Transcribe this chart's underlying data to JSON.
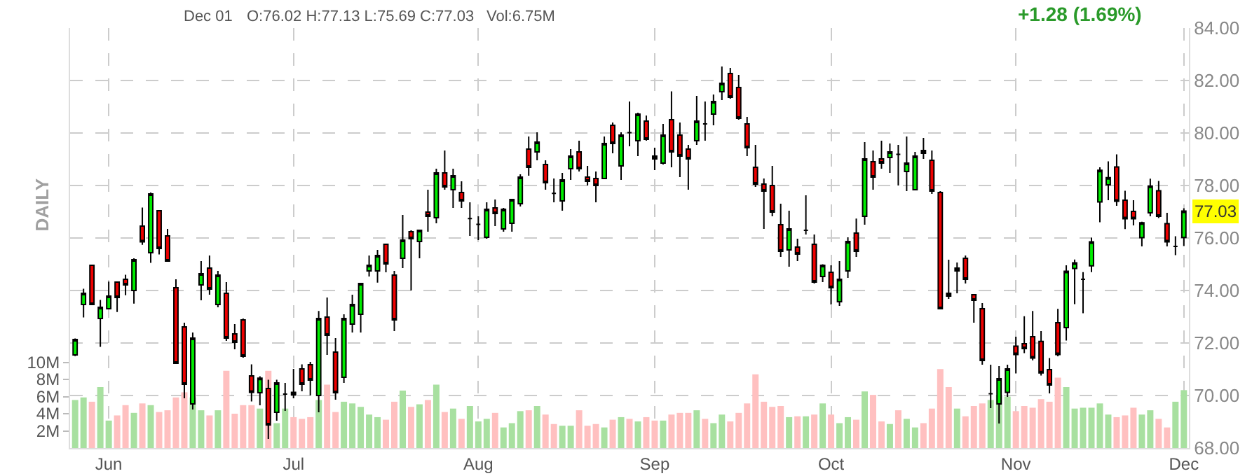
{
  "chart_data": {
    "type": "candlestick",
    "categories": [
      null,
      null,
      null,
      null,
      "Jun",
      null,
      null,
      null,
      null,
      null,
      null,
      null,
      null,
      null,
      null,
      null,
      null,
      null,
      null,
      null,
      null,
      null,
      null,
      null,
      null,
      null,
      "Jul",
      null,
      null,
      null,
      null,
      null,
      null,
      null,
      null,
      null,
      null,
      null,
      null,
      null,
      null,
      null,
      null,
      null,
      null,
      null,
      null,
      null,
      "Aug",
      null,
      null,
      null,
      null,
      null,
      null,
      null,
      null,
      null,
      null,
      null,
      null,
      null,
      null,
      null,
      null,
      null,
      null,
      null,
      null,
      "Sep",
      null,
      null,
      null,
      null,
      null,
      null,
      null,
      null,
      null,
      null,
      null,
      null,
      null,
      null,
      null,
      null,
      null,
      null,
      null,
      null,
      "Oct",
      null,
      null,
      null,
      null,
      null,
      null,
      null,
      null,
      null,
      null,
      null,
      null,
      null,
      null,
      null,
      null,
      null,
      null,
      null,
      null,
      null,
      "Nov",
      null,
      null,
      null,
      null,
      null,
      null,
      null,
      null,
      null,
      null,
      null,
      null,
      null,
      null,
      null,
      null,
      null,
      null,
      null,
      "Dec"
    ],
    "ohlc": [
      [
        71.55,
        72.17,
        71.5,
        72.13
      ],
      [
        73.47,
        74.07,
        72.97,
        73.89
      ],
      [
        74.96,
        74.96,
        73.47,
        73.47
      ],
      [
        72.93,
        73.64,
        71.85,
        73.36
      ],
      [
        73.31,
        74.34,
        73.31,
        73.79
      ],
      [
        74.32,
        74.32,
        73.18,
        73.73
      ],
      [
        74.43,
        74.6,
        73.82,
        74.21
      ],
      [
        74.0,
        75.23,
        73.5,
        75.17
      ],
      [
        76.45,
        77.16,
        75.74,
        75.85
      ],
      [
        75.44,
        77.73,
        75.05,
        77.68
      ],
      [
        77.04,
        77.04,
        75.37,
        75.6
      ],
      [
        76.08,
        76.35,
        75.12,
        75.12
      ],
      [
        74.11,
        74.43,
        71.23,
        71.23
      ],
      [
        72.61,
        72.77,
        69.89,
        70.43
      ],
      [
        69.68,
        72.4,
        69.47,
        72.19
      ],
      [
        74.21,
        75.12,
        73.63,
        74.64
      ],
      [
        74.85,
        75.33,
        73.84,
        74.05
      ],
      [
        73.47,
        74.75,
        73.36,
        74.59
      ],
      [
        73.89,
        74.32,
        72.08,
        72.19
      ],
      [
        72.35,
        72.72,
        71.76,
        72.03
      ],
      [
        72.88,
        72.93,
        71.44,
        71.49
      ],
      [
        70.75,
        71.19,
        69.77,
        70.12
      ],
      [
        70.11,
        70.73,
        69.63,
        70.66
      ],
      [
        70.27,
        70.6,
        68.35,
        68.88
      ],
      [
        69.36,
        70.6,
        69.04,
        70.48
      ],
      [
        70.05,
        70.48,
        69.41,
        70.05
      ],
      [
        70.12,
        71.01,
        69.89,
        70.02
      ],
      [
        71.01,
        71.19,
        70.16,
        70.43
      ],
      [
        71.17,
        71.28,
        70.0,
        70.59
      ],
      [
        70.0,
        73.22,
        69.36,
        72.93
      ],
      [
        72.99,
        73.73,
        71.55,
        72.29
      ],
      [
        71.65,
        72.19,
        69.84,
        70.11
      ],
      [
        70.69,
        73.09,
        70.48,
        72.93
      ],
      [
        72.72,
        73.84,
        72.4,
        73.47
      ],
      [
        73.09,
        74.27,
        72.4,
        74.27
      ],
      [
        74.75,
        75.33,
        74.53,
        74.96
      ],
      [
        74.75,
        75.55,
        74.3,
        75.33
      ],
      [
        75.76,
        75.76,
        74.69,
        75.01
      ],
      [
        74.59,
        74.75,
        72.45,
        72.88
      ],
      [
        75.23,
        76.88,
        74.85,
        75.92
      ],
      [
        76.24,
        76.29,
        74.0,
        75.97
      ],
      [
        75.87,
        76.29,
        75.23,
        76.29
      ],
      [
        76.99,
        77.84,
        76.24,
        76.83
      ],
      [
        76.77,
        78.64,
        76.56,
        78.48
      ],
      [
        78.48,
        79.33,
        77.84,
        77.95
      ],
      [
        77.84,
        78.64,
        77.15,
        78.37
      ],
      [
        77.73,
        78.16,
        77.15,
        77.41
      ],
      [
        76.74,
        77.36,
        76.08,
        76.74
      ],
      [
        76.52,
        76.83,
        75.92,
        76.52
      ],
      [
        76.03,
        77.36,
        75.97,
        77.09
      ],
      [
        77.15,
        77.47,
        76.45,
        76.93
      ],
      [
        76.35,
        77.15,
        76.24,
        77.09
      ],
      [
        76.56,
        77.47,
        76.24,
        77.47
      ],
      [
        77.31,
        78.43,
        77.2,
        78.32
      ],
      [
        79.39,
        79.87,
        78.37,
        78.69
      ],
      [
        79.28,
        80.03,
        78.96,
        79.65
      ],
      [
        78.8,
        78.96,
        77.84,
        78.11
      ],
      [
        77.7,
        78.27,
        77.36,
        77.7
      ],
      [
        77.41,
        78.48,
        77.04,
        78.21
      ],
      [
        78.64,
        79.39,
        78.21,
        79.12
      ],
      [
        79.28,
        79.71,
        78.53,
        78.64
      ],
      [
        78.32,
        78.75,
        78.0,
        78.16
      ],
      [
        78.27,
        78.53,
        77.36,
        78.0
      ],
      [
        78.27,
        79.87,
        78.27,
        79.6
      ],
      [
        80.29,
        80.4,
        79.23,
        79.6
      ],
      [
        78.75,
        80.03,
        78.21,
        79.92
      ],
      [
        80.01,
        81.2,
        79.49,
        80.01
      ],
      [
        79.71,
        80.77,
        79.12,
        80.72
      ],
      [
        80.45,
        80.67,
        79.71,
        79.76
      ],
      [
        79.12,
        79.44,
        78.59,
        79.01
      ],
      [
        78.85,
        80.35,
        78.8,
        79.92
      ],
      [
        80.51,
        81.59,
        78.69,
        79.28
      ],
      [
        79.92,
        80.4,
        78.32,
        79.12
      ],
      [
        79.39,
        79.55,
        77.84,
        79.01
      ],
      [
        79.71,
        81.41,
        79.55,
        80.45
      ],
      [
        80.35,
        81.2,
        79.71,
        80.35
      ],
      [
        80.72,
        81.47,
        80.29,
        81.2
      ],
      [
        81.57,
        82.53,
        81.25,
        81.89
      ],
      [
        82.27,
        82.48,
        81.31,
        81.36
      ],
      [
        81.73,
        82.21,
        80.51,
        80.56
      ],
      [
        80.35,
        80.61,
        79.12,
        79.44
      ],
      [
        78.69,
        79.55,
        77.95,
        78.05
      ],
      [
        78.05,
        78.27,
        76.35,
        77.79
      ],
      [
        78.0,
        78.75,
        76.83,
        76.99
      ],
      [
        76.51,
        77.31,
        75.28,
        75.49
      ],
      [
        75.55,
        77.04,
        74.91,
        76.35
      ],
      [
        75.65,
        75.97,
        75.12,
        75.39
      ],
      [
        76.29,
        77.63,
        76.13,
        76.29
      ],
      [
        75.76,
        76.13,
        74.27,
        74.32
      ],
      [
        74.53,
        75.0,
        74.32,
        74.96
      ],
      [
        74.69,
        74.96,
        73.47,
        74.11
      ],
      [
        73.57,
        75.12,
        73.41,
        74.43
      ],
      [
        74.75,
        76.03,
        74.48,
        75.87
      ],
      [
        76.19,
        76.74,
        75.28,
        75.49
      ],
      [
        76.83,
        79.65,
        76.51,
        79.01
      ],
      [
        78.91,
        79.33,
        77.84,
        78.32
      ],
      [
        79.01,
        79.71,
        78.64,
        78.85
      ],
      [
        79.07,
        79.6,
        78.48,
        79.28
      ],
      [
        79.19,
        79.55,
        78.0,
        79.19
      ],
      [
        78.53,
        79.87,
        77.79,
        78.85
      ],
      [
        77.84,
        79.28,
        77.84,
        79.12
      ],
      [
        79.33,
        79.81,
        79.01,
        79.23
      ],
      [
        78.96,
        79.33,
        77.68,
        77.79
      ],
      [
        77.73,
        77.79,
        73.31,
        73.31
      ],
      [
        73.89,
        75.17,
        73.68,
        73.79
      ],
      [
        74.75,
        75.07,
        73.89,
        74.85
      ],
      [
        75.23,
        75.33,
        74.27,
        74.43
      ],
      [
        73.84,
        73.84,
        72.77,
        73.63
      ],
      [
        73.31,
        73.52,
        71.17,
        71.33
      ],
      [
        70.07,
        71.17,
        69.52,
        70.07
      ],
      [
        69.68,
        71.12,
        68.93,
        70.64
      ],
      [
        70.12,
        71.17,
        69.95,
        71.01
      ],
      [
        71.88,
        72.24,
        70.84,
        71.56
      ],
      [
        71.97,
        73.02,
        71.61,
        71.79
      ],
      [
        72.24,
        73.22,
        71.34,
        71.43
      ],
      [
        72.06,
        72.45,
        70.76,
        70.86
      ],
      [
        70.99,
        71.43,
        70.08,
        70.4
      ],
      [
        72.77,
        73.3,
        71.49,
        71.56
      ],
      [
        72.59,
        74.96,
        72.09,
        74.73
      ],
      [
        74.84,
        75.18,
        73.48,
        75.05
      ],
      [
        74.43,
        74.7,
        73.13,
        74.43
      ],
      [
        74.94,
        76.01,
        74.7,
        75.85
      ],
      [
        77.37,
        78.69,
        76.6,
        78.58
      ],
      [
        78.03,
        78.92,
        77.44,
        78.3
      ],
      [
        78.71,
        79.19,
        77.23,
        77.4
      ],
      [
        77.44,
        77.8,
        76.34,
        76.73
      ],
      [
        77.01,
        77.44,
        76.48,
        76.73
      ],
      [
        76.01,
        76.62,
        75.68,
        76.58
      ],
      [
        76.96,
        78.26,
        76.83,
        77.98
      ],
      [
        77.8,
        78.17,
        76.76,
        76.83
      ],
      [
        76.55,
        76.96,
        75.68,
        75.85
      ],
      [
        75.68,
        76.07,
        75.35,
        75.68
      ],
      [
        76.02,
        77.13,
        75.69,
        77.03
      ]
    ],
    "series": [
      {
        "type": "bar",
        "axis": "y2",
        "values": [
          5.6,
          5.9,
          5.4,
          7.1,
          3.2,
          3.8,
          5.0,
          4.1,
          5.2,
          5.0,
          4.2,
          4.4,
          5.9,
          6.5,
          5.9,
          4.4,
          3.8,
          4.4,
          9.0,
          4.0,
          5.0,
          5.0,
          4.6,
          9.0,
          2.9,
          4.6,
          3.6,
          3.4,
          3.6,
          5.6,
          7.4,
          4.2,
          5.4,
          5.2,
          4.8,
          3.9,
          3.6,
          3.3,
          5.4,
          6.7,
          4.8,
          5.1,
          5.6,
          7.4,
          4.2,
          4.6,
          3.4,
          4.9,
          3.1,
          3.4,
          4.1,
          2.4,
          2.9,
          4.3,
          4.4,
          4.9,
          3.9,
          2.8,
          2.6,
          2.6,
          4.4,
          2.6,
          2.8,
          2.4,
          3.3,
          3.6,
          3.4,
          3.1,
          3.6,
          3.2,
          3.2,
          3.9,
          4.1,
          4.1,
          4.4,
          3.4,
          2.9,
          3.9,
          3.1,
          4.1,
          5.2,
          8.6,
          5.4,
          4.8,
          4.9,
          3.6,
          3.7,
          3.7,
          3.9,
          5.2,
          3.9,
          2.9,
          3.6,
          3.3,
          6.6,
          6.2,
          3.1,
          2.8,
          4.4,
          3.4,
          2.4,
          2.9,
          4.6,
          9.2,
          7.1,
          4.6,
          3.7,
          4.9,
          5.2,
          5.6,
          6.2,
          6.0,
          4.3,
          4.9,
          4.7,
          5.7,
          5.4,
          8.2,
          7.1,
          4.6,
          4.7,
          4.7,
          5.2,
          3.9,
          3.6,
          3.8,
          4.7,
          3.9,
          4.4,
          3.4,
          2.4,
          5.4,
          6.75
        ],
        "colors": [
          "#a8e0a0",
          "#a8e0a0",
          "#ffc0c0",
          "#a8e0a0",
          "#a8e0a0",
          "#ffc0c0",
          "#ffc0c0",
          "#a8e0a0",
          "#ffc0c0",
          "#a8e0a0",
          "#ffc0c0",
          "#ffc0c0",
          "#ffc0c0",
          "#ffc0c0",
          "#a8e0a0",
          "#a8e0a0",
          "#ffc0c0",
          "#a8e0a0",
          "#ffc0c0",
          "#ffc0c0",
          "#ffc0c0",
          "#ffc0c0",
          "#a8e0a0",
          "#ffc0c0",
          "#a8e0a0",
          "#a8e0a0",
          "#ffc0c0",
          "#ffc0c0",
          "#ffc0c0",
          "#a8e0a0",
          "#ffc0c0",
          "#ffc0c0",
          "#a8e0a0",
          "#a8e0a0",
          "#a8e0a0",
          "#a8e0a0",
          "#a8e0a0",
          "#ffc0c0",
          "#ffc0c0",
          "#a8e0a0",
          "#ffc0c0",
          "#a8e0a0",
          "#ffc0c0",
          "#a8e0a0",
          "#ffc0c0",
          "#a8e0a0",
          "#ffc0c0",
          "#a8e0a0",
          "#a8e0a0",
          "#a8e0a0",
          "#ffc0c0",
          "#a8e0a0",
          "#a8e0a0",
          "#a8e0a0",
          "#ffc0c0",
          "#a8e0a0",
          "#ffc0c0",
          "#ffc0c0",
          "#a8e0a0",
          "#a8e0a0",
          "#ffc0c0",
          "#ffc0c0",
          "#ffc0c0",
          "#a8e0a0",
          "#ffc0c0",
          "#a8e0a0",
          "#ffc0c0",
          "#a8e0a0",
          "#ffc0c0",
          "#ffc0c0",
          "#a8e0a0",
          "#ffc0c0",
          "#ffc0c0",
          "#ffc0c0",
          "#a8e0a0",
          "#ffc0c0",
          "#a8e0a0",
          "#a8e0a0",
          "#ffc0c0",
          "#ffc0c0",
          "#ffc0c0",
          "#ffc0c0",
          "#ffc0c0",
          "#ffc0c0",
          "#ffc0c0",
          "#a8e0a0",
          "#ffc0c0",
          "#a8e0a0",
          "#ffc0c0",
          "#a8e0a0",
          "#ffc0c0",
          "#a8e0a0",
          "#a8e0a0",
          "#ffc0c0",
          "#a8e0a0",
          "#ffc0c0",
          "#ffc0c0",
          "#a8e0a0",
          "#ffc0c0",
          "#a8e0a0",
          "#a8e0a0",
          "#ffc0c0",
          "#ffc0c0",
          "#ffc0c0",
          "#ffc0c0",
          "#a8e0a0",
          "#ffc0c0",
          "#ffc0c0",
          "#ffc0c0",
          "#a8e0a0",
          "#a8e0a0",
          "#a8e0a0",
          "#ffc0c0",
          "#ffc0c0",
          "#ffc0c0",
          "#ffc0c0",
          "#ffc0c0",
          "#ffc0c0",
          "#a8e0a0",
          "#a8e0a0",
          "#a8e0a0",
          "#a8e0a0",
          "#a8e0a0",
          "#a8e0a0",
          "#ffc0c0",
          "#ffc0c0",
          "#ffc0c0",
          "#a8e0a0",
          "#a8e0a0",
          "#ffc0c0",
          "#ffc0c0",
          "#a8e0a0",
          "#a8e0a0"
        ]
      }
    ],
    "ylim": [
      68,
      84
    ],
    "yticks": [
      {
        "value": 68,
        "label": "68.00"
      },
      {
        "value": 70,
        "label": "70.00"
      },
      {
        "value": 72,
        "label": "72.00"
      },
      {
        "value": 74,
        "label": "74.00"
      },
      {
        "value": 76,
        "label": "76.00"
      },
      {
        "value": 78,
        "label": "78.00"
      },
      {
        "value": 80,
        "label": "80.00"
      },
      {
        "value": 82,
        "label": "82.00"
      },
      {
        "value": 84,
        "label": "84.00"
      }
    ],
    "y2lim": [
      0,
      49
    ],
    "y2ticks": [
      {
        "value": 2,
        "label": "2M"
      },
      {
        "value": 4,
        "label": "4M"
      },
      {
        "value": 6,
        "label": "6M"
      },
      {
        "value": 8,
        "label": "8M"
      },
      {
        "value": 10,
        "label": "10M"
      }
    ],
    "grid": true,
    "annotations": [
      "Dec 01",
      "O:76.02 H:77.13 L:75.69 C:77.03",
      "Vol:6.75M",
      "+1.28 (1.69%)",
      "DAILY",
      {
        "text": "77.03",
        "y": 77.03
      }
    ]
  }
}
